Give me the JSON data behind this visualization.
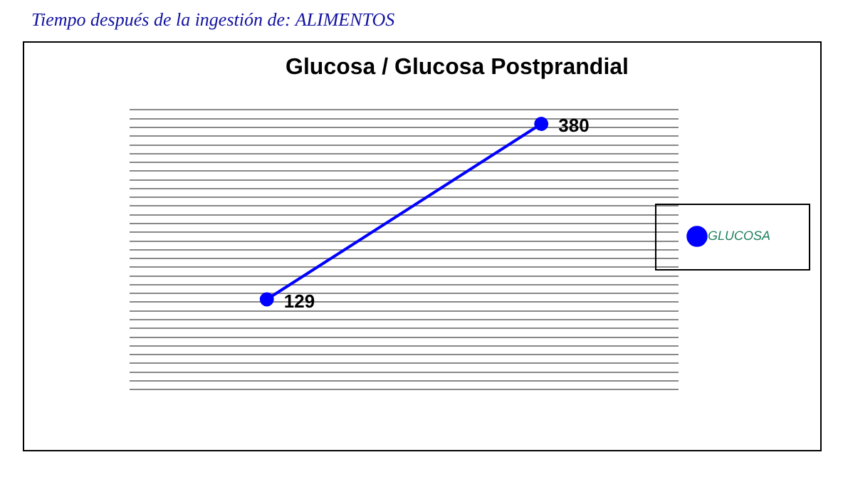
{
  "chart_data": {
    "type": "line",
    "title": "Glucosa / Glucosa Postprandial",
    "annotations": [
      "Tiempo después de la ingestión de: ALIMENTOS"
    ],
    "categories": [
      null,
      null
    ],
    "series": [
      {
        "name": "GLUCOSA",
        "color": "#0000ff",
        "values": [
          129,
          380
        ]
      }
    ],
    "ylim": [
      0,
      400
    ],
    "yticks": [
      {
        "value": 0,
        "label": null
      },
      {
        "value": 12.5,
        "label": null
      },
      {
        "value": 25,
        "label": null
      },
      {
        "value": 37.5,
        "label": null
      },
      {
        "value": 50,
        "label": null
      },
      {
        "value": 62.5,
        "label": null
      },
      {
        "value": 75,
        "label": null
      },
      {
        "value": 87.5,
        "label": null
      },
      {
        "value": 100,
        "label": null
      },
      {
        "value": 112.5,
        "label": null
      },
      {
        "value": 125,
        "label": null
      },
      {
        "value": 137.5,
        "label": null
      },
      {
        "value": 150,
        "label": null
      },
      {
        "value": 162.5,
        "label": null
      },
      {
        "value": 175,
        "label": null
      },
      {
        "value": 187.5,
        "label": null
      },
      {
        "value": 200,
        "label": null
      },
      {
        "value": 212.5,
        "label": null
      },
      {
        "value": 225,
        "label": null
      },
      {
        "value": 237.5,
        "label": null
      },
      {
        "value": 250,
        "label": null
      },
      {
        "value": 262.5,
        "label": null
      },
      {
        "value": 275,
        "label": null
      },
      {
        "value": 287.5,
        "label": null
      },
      {
        "value": 300,
        "label": null
      },
      {
        "value": 312.5,
        "label": null
      },
      {
        "value": 325,
        "label": null
      },
      {
        "value": 337.5,
        "label": null
      },
      {
        "value": 350,
        "label": null
      },
      {
        "value": 362.5,
        "label": null
      },
      {
        "value": 375,
        "label": null
      },
      {
        "value": 387.5,
        "label": null
      },
      {
        "value": 400,
        "label": null
      }
    ],
    "grid": "y",
    "legend": "right",
    "marker": "circle",
    "line_style": "solid",
    "data_labels": true
  }
}
